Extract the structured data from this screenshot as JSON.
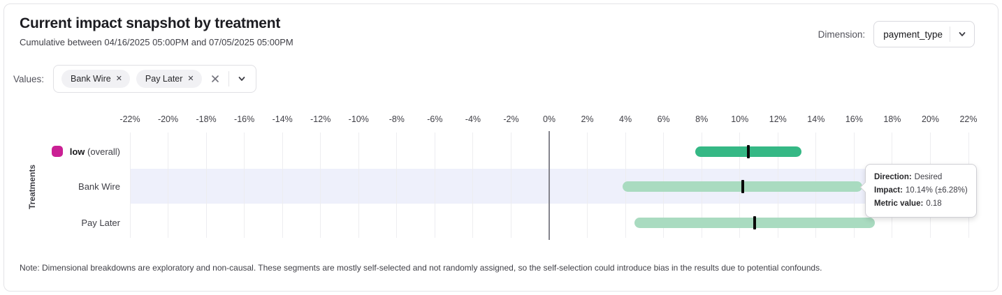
{
  "header": {
    "title": "Current impact snapshot by treatment",
    "subtitle": "Cumulative between 04/16/2025 05:00PM and 07/05/2025 05:00PM",
    "dimension_label": "Dimension:",
    "dimension_value": "payment_type"
  },
  "filters": {
    "label": "Values:",
    "chips": [
      {
        "label": "Bank Wire",
        "remove_glyph": "✕"
      },
      {
        "label": "Pay Later",
        "remove_glyph": "✕"
      }
    ]
  },
  "chart_data": {
    "type": "bar",
    "orientation": "horizontal",
    "subtype": "impact-confidence-intervals",
    "title": "Current impact snapshot by treatment",
    "ylabel": "Treatments",
    "grid": true,
    "zero_line": true,
    "x_axis": {
      "min": -22,
      "max": 22,
      "step": 2,
      "unit": "%",
      "tick_labels": [
        "-22%",
        "-20%",
        "-18%",
        "-16%",
        "-14%",
        "-12%",
        "-10%",
        "-8%",
        "-6%",
        "-4%",
        "-2%",
        "0%",
        "2%",
        "4%",
        "6%",
        "8%",
        "10%",
        "12%",
        "14%",
        "16%",
        "18%",
        "20%",
        "22%"
      ]
    },
    "rows": [
      {
        "label_bold": "low",
        "label_rest": " (overall)",
        "swatch_color": "#ca2094",
        "bar_color": "#35b885",
        "marker_color": "#0a0a0a",
        "impact_pct": 10.45,
        "ci_pct": 2.79,
        "ci_low_pct": 7.66,
        "ci_high_pct": 13.24,
        "highlighted": false
      },
      {
        "label_bold": "",
        "label_rest": "Bank Wire",
        "swatch_color": null,
        "bar_color": "#a9dbc0",
        "marker_color": "#0a0a0a",
        "impact_pct": 10.14,
        "ci_pct": 6.28,
        "ci_low_pct": 3.86,
        "ci_high_pct": 16.42,
        "highlighted": true
      },
      {
        "label_bold": "",
        "label_rest": "Pay Later",
        "swatch_color": null,
        "bar_color": "#a9dbc0",
        "marker_color": "#0a0a0a",
        "impact_pct": 10.78,
        "ci_pct": 6.31,
        "ci_low_pct": 4.47,
        "ci_high_pct": 17.09,
        "highlighted": false
      }
    ],
    "band_color": "#eef0fb"
  },
  "tooltip": {
    "target_row": "Bank Wire",
    "lines": [
      {
        "label": "Direction:",
        "value": "Desired"
      },
      {
        "label": "Impact:",
        "value": "10.14% (±6.28%)"
      },
      {
        "label": "Metric value:",
        "value": "0.18"
      }
    ]
  },
  "note": "Note: Dimensional breakdowns are exploratory and non-causal. These segments are mostly self-selected and not randomly assigned, so the self-selection could introduce bias in the results due to potential confounds."
}
